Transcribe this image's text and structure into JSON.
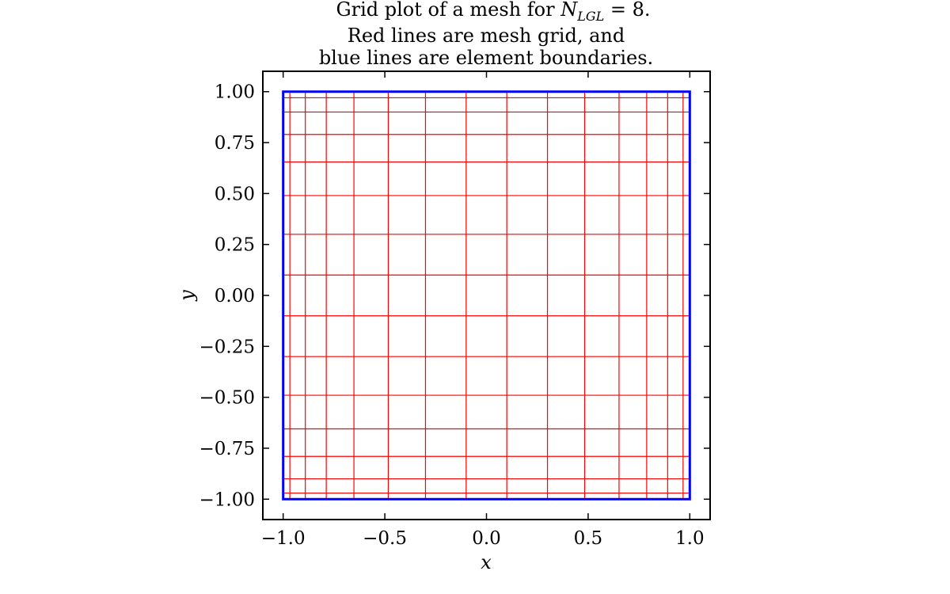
{
  "chart_data": {
    "type": "mesh_grid",
    "title": {
      "line1_prefix": "Grid plot of a mesh for ",
      "line1_symbol": "N",
      "line1_subscript": "LGL",
      "line1_suffix": " = 8.",
      "line2": "Red lines are mesh grid, and",
      "line3": "blue lines are element boundaries."
    },
    "xlabel": "x",
    "ylabel": "y",
    "xlim": [
      -1.1,
      1.1
    ],
    "ylim": [
      -1.1,
      1.1
    ],
    "x_ticks": [
      -1.0,
      -0.5,
      0.0,
      0.5,
      1.0
    ],
    "x_tick_labels": [
      "−1.0",
      "−0.5",
      "0.0",
      "0.5",
      "1.0"
    ],
    "y_ticks": [
      1.0,
      0.75,
      0.5,
      0.25,
      0.0,
      -0.25,
      -0.5,
      -0.75,
      -1.0
    ],
    "y_tick_labels": [
      "1.00",
      "0.75",
      "0.50",
      "0.25",
      "0.00",
      "−0.25",
      "−0.50",
      "−0.75",
      "−1.00"
    ],
    "mesh_x_lines": [
      -1.0,
      -0.967,
      -0.891,
      -0.788,
      -0.652,
      -0.483,
      -0.3,
      -0.1,
      0.1,
      0.3,
      0.483,
      0.652,
      0.788,
      0.891,
      0.967,
      1.0
    ],
    "mesh_y_lines": [
      1.0,
      0.97,
      0.9,
      0.79,
      0.655,
      0.49,
      0.3,
      0.1,
      -0.1,
      -0.3,
      -0.49,
      -0.655,
      -0.79,
      -0.9,
      -0.97,
      -1.0
    ],
    "element_boundaries": {
      "x": [
        -1.0,
        1.0
      ],
      "y": [
        -1.0,
        1.0
      ]
    },
    "colors": {
      "mesh": "#ff0000",
      "boundary": "#0000ff",
      "axes": "#000000"
    }
  }
}
